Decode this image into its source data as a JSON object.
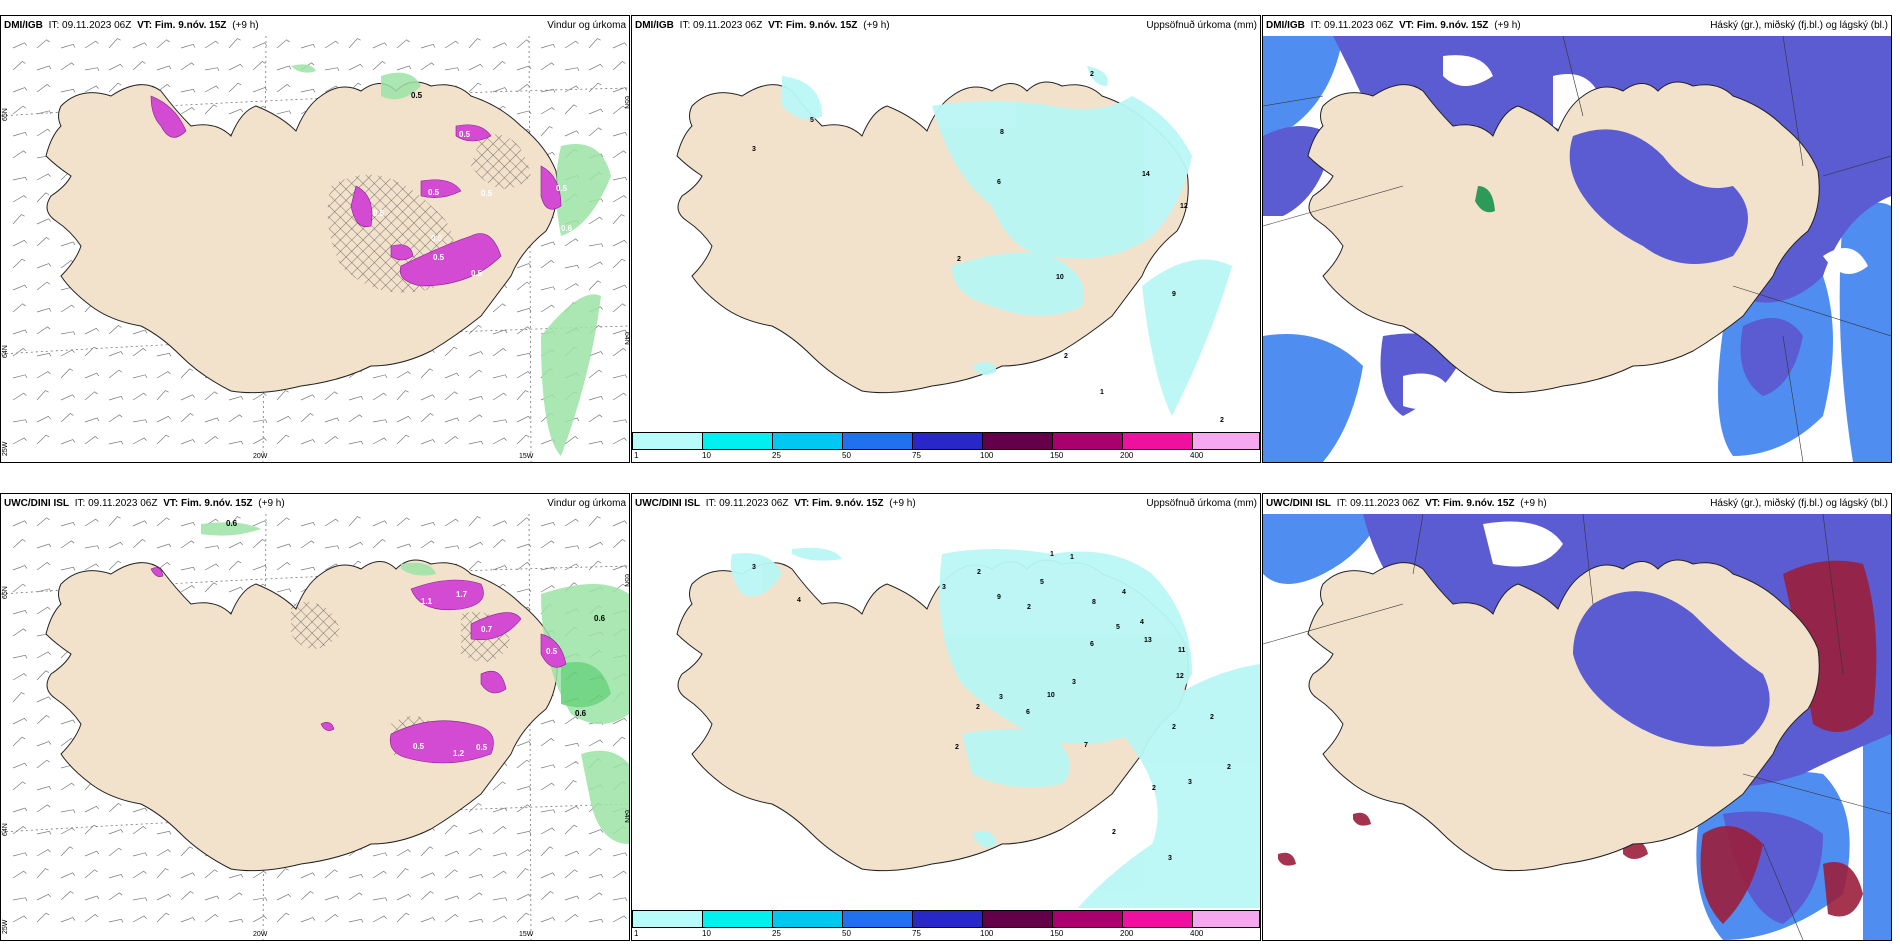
{
  "panels": {
    "dmi_wind": {
      "model": "DMI/IGB",
      "it_prefix": "IT:",
      "it": "09.11.2023 06Z",
      "vt_prefix": "VT:",
      "vt": "Fim. 9.nóv. 15Z",
      "lead": "(+9 h)",
      "title": "Vindur og úrkoma"
    },
    "dmi_precip": {
      "model": "DMI/IGB",
      "it_prefix": "IT:",
      "it": "09.11.2023 06Z",
      "vt_prefix": "VT:",
      "vt": "Fim. 9.nóv. 15Z",
      "lead": "(+9 h)",
      "title": "Uppsöfnuð úrkoma (mm)"
    },
    "dmi_cloud": {
      "model": "DMI/IGB",
      "it_prefix": "IT:",
      "it": "09.11.2023 06Z",
      "vt_prefix": "VT:",
      "vt": "Fim. 9.nóv. 15Z",
      "lead": "(+9 h)",
      "title": "Háský (gr.), miðský (fj.bl.) og lágský (bl.)"
    },
    "uwc_wind": {
      "model": "UWC/DINI ISL",
      "it_prefix": "IT:",
      "it": "09.11.2023 06Z",
      "vt_prefix": "VT:",
      "vt": "Fim. 9.nóv. 15Z",
      "lead": "(+9 h)",
      "title": "Vindur og úrkoma"
    },
    "uwc_precip": {
      "model": "UWC/DINI ISL",
      "it_prefix": "IT:",
      "it": "09.11.2023 06Z",
      "vt_prefix": "VT:",
      "vt": "Fim. 9.nóv. 15Z",
      "lead": "(+9 h)",
      "title": "Uppsöfnuð úrkoma (mm)"
    },
    "uwc_cloud": {
      "model": "UWC/DINI ISL",
      "it_prefix": "IT:",
      "it": "09.11.2023 06Z",
      "vt_prefix": "VT:",
      "vt": "Fim. 9.nóv. 15Z",
      "lead": "(+9 h)",
      "title": "Háský (gr.), miðský (fj.bl.) og lágský (bl.)"
    }
  },
  "axis_labels": {
    "lat_65": "65N",
    "lat_64": "64N",
    "lon_25": "25W",
    "lon_20": "20W",
    "lon_15": "15W"
  },
  "wind_values": {
    "dmi": [
      "0.5",
      "0.5",
      "0.5",
      "0.5",
      "0.5",
      "0.5",
      "0.5",
      "0.5",
      "0.6",
      "0.5"
    ],
    "uwc": [
      "0.6",
      "0.6",
      "0.6",
      "1.7",
      "1.1",
      "1.2",
      "0.5",
      "0.5",
      "0.7",
      "0.5"
    ]
  },
  "precip_labels": {
    "dmi": [
      "3",
      "5",
      "6",
      "8",
      "14",
      "12",
      "2",
      "2",
      "10",
      "9",
      "1",
      "2",
      "2"
    ],
    "uwc": [
      "3",
      "1",
      "4",
      "3",
      "9",
      "5",
      "2",
      "2",
      "1",
      "8",
      "4",
      "5",
      "4",
      "6",
      "13",
      "11",
      "12",
      "10",
      "3",
      "3",
      "2",
      "2",
      "6",
      "7",
      "2",
      "2",
      "2",
      "2",
      "3",
      "2",
      "3"
    ]
  },
  "colorbar": {
    "ticks": [
      "1",
      "10",
      "25",
      "50",
      "75",
      "100",
      "150",
      "200",
      "400"
    ],
    "colors": [
      "#b8fbfb",
      "#00f0f0",
      "#00c8f0",
      "#2070f0",
      "#2828c8",
      "#64004a",
      "#aa006e",
      "#f010a0",
      "#f5a8f0"
    ]
  },
  "colors": {
    "land": "#f2e2cc",
    "sea": "#ffffff",
    "precip_light": "#b9f7f5",
    "cloud_high": "#5b5bd2",
    "cloud_mid": "#4f8ef0",
    "cloud_edge": "#9fd8f8",
    "cloud_low": "#9b1e3c",
    "wind_green": "#9be3a6",
    "wind_pink": "#d24bd2"
  }
}
